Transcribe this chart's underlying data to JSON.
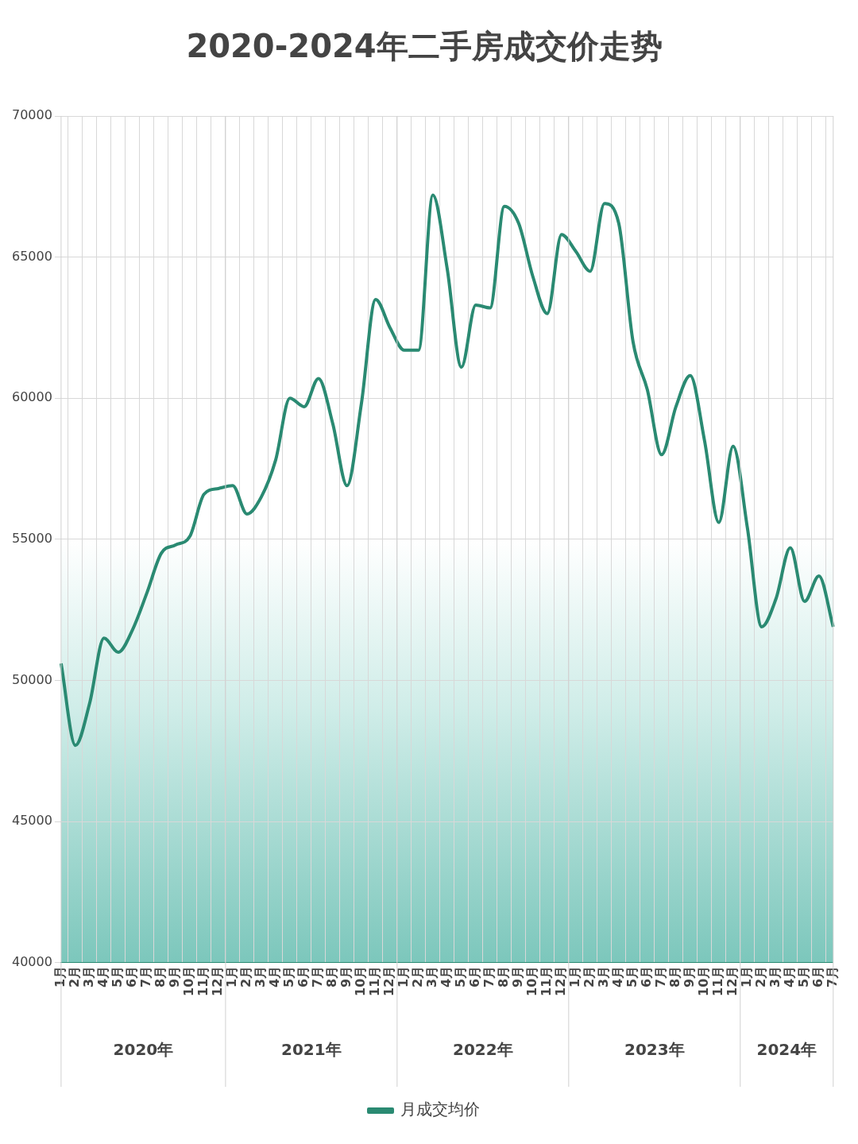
{
  "chart_data": {
    "type": "line",
    "title": "2020-2024年二手房成交价走势",
    "categories": [
      "1月",
      "2月",
      "3月",
      "4月",
      "5月",
      "6月",
      "7月",
      "8月",
      "9月",
      "10月",
      "11月",
      "12月",
      "1月",
      "2月",
      "3月",
      "4月",
      "5月",
      "6月",
      "7月",
      "8月",
      "9月",
      "10月",
      "11月",
      "12月",
      "1月",
      "2月",
      "3月",
      "4月",
      "5月",
      "6月",
      "7月",
      "8月",
      "9月",
      "10月",
      "11月",
      "12月",
      "1月",
      "2月",
      "3月",
      "4月",
      "5月",
      "6月",
      "7月",
      "8月",
      "9月",
      "10月",
      "11月",
      "12月",
      "1月",
      "2月",
      "3月",
      "4月",
      "5月",
      "6月",
      "7月"
    ],
    "series": [
      {
        "name": "月成交均价",
        "color": "#2a8a72",
        "values": [
          50600,
          47700,
          49200,
          51500,
          51000,
          51800,
          53100,
          54500,
          54800,
          55100,
          56600,
          56800,
          56900,
          55900,
          56500,
          57800,
          60000,
          59700,
          60700,
          59100,
          56900,
          59800,
          63500,
          62500,
          61700,
          61700,
          67200,
          64600,
          61100,
          63300,
          63200,
          66800,
          66200,
          64300,
          63000,
          65800,
          65200,
          64500,
          66900,
          66200,
          62000,
          60300,
          58000,
          59700,
          60800,
          58500,
          55600,
          58300,
          55400,
          51900,
          52900,
          54700,
          52800,
          53700,
          51900
        ]
      }
    ],
    "annotations": [
      {
        "text": "2020年"
      },
      {
        "text": "2021年"
      },
      {
        "text": "2022年"
      },
      {
        "text": "2023年"
      },
      {
        "text": "2024年"
      }
    ],
    "ylim": [
      40000,
      70000
    ],
    "yticks": [
      40000,
      45000,
      50000,
      55000,
      60000,
      65000,
      70000
    ],
    "grid": true,
    "legend": "bottom",
    "marker": "none",
    "line_style": "solid"
  }
}
